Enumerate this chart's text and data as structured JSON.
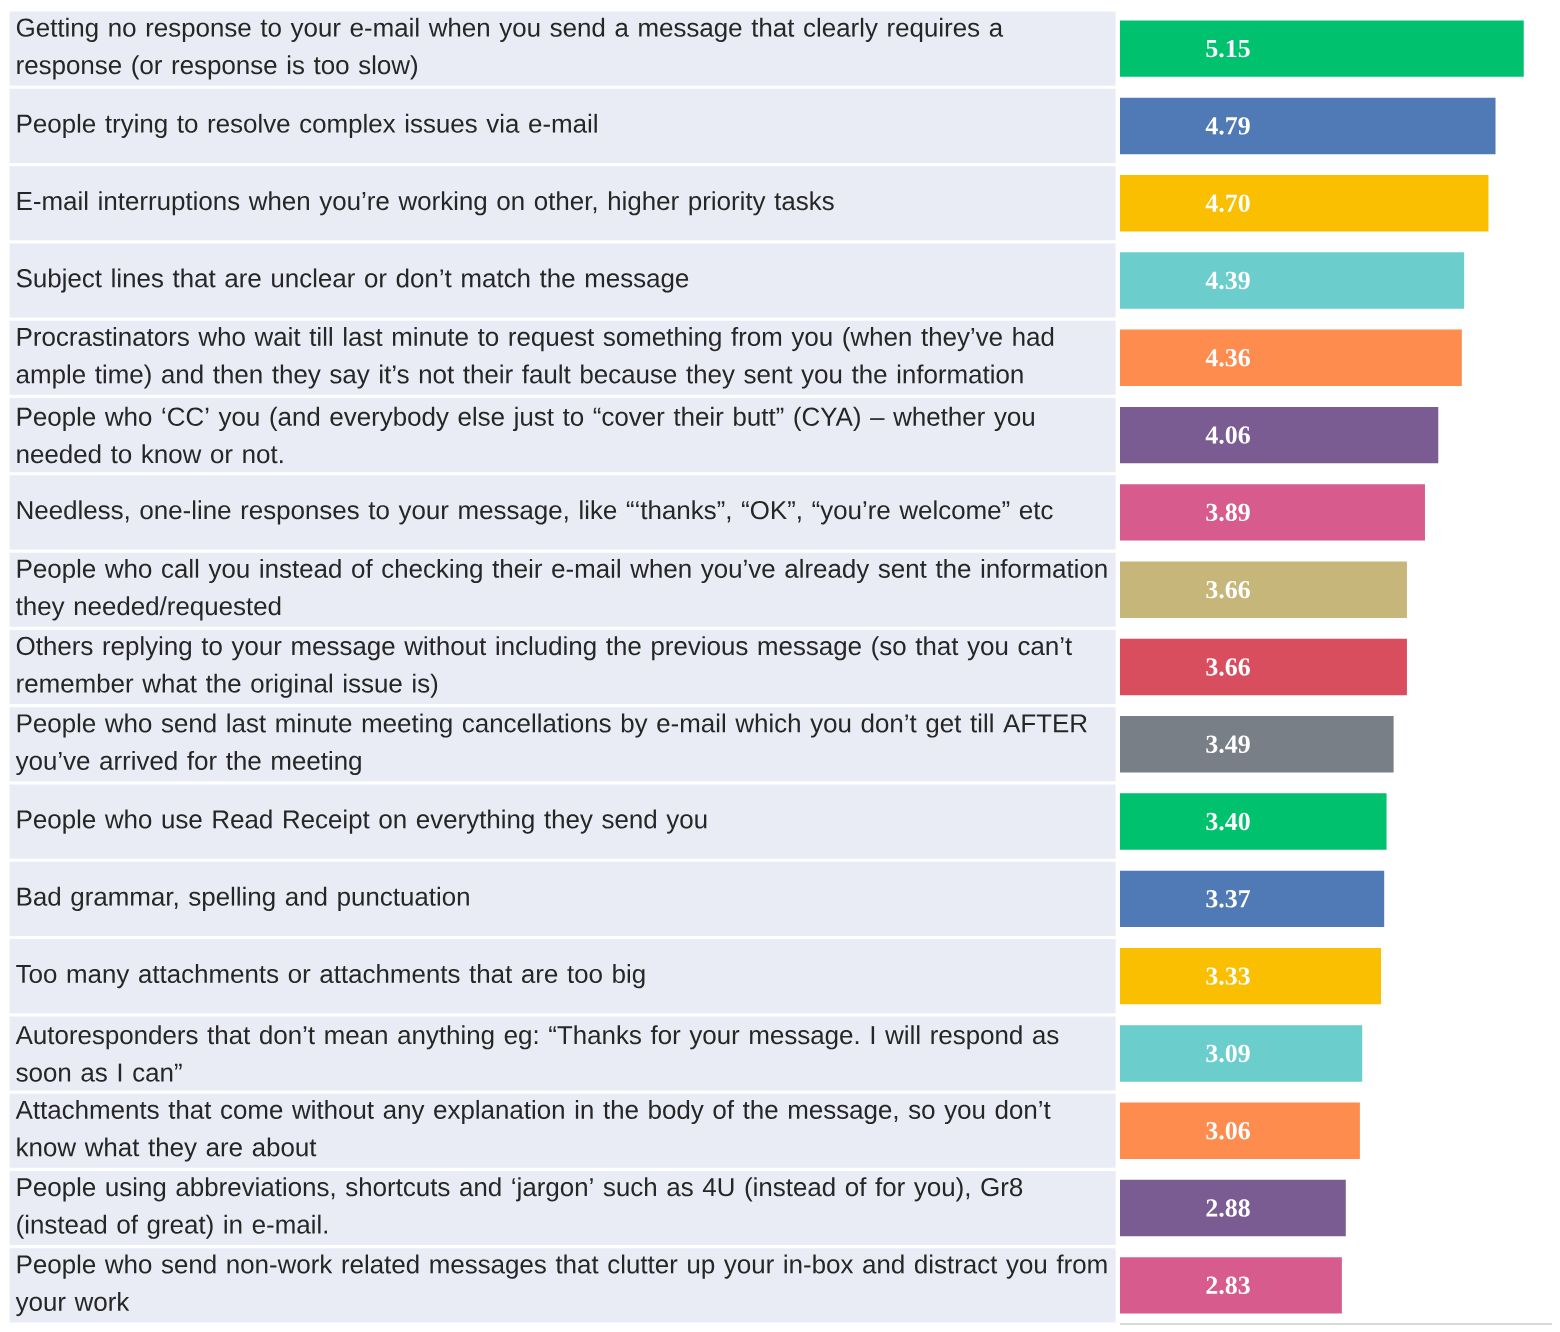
{
  "chart_data": {
    "type": "bar",
    "orientation": "horizontal",
    "categories": [
      "Getting no response to your e-mail when you send a message that clearly requires a response (or response is too slow)",
      "People trying to resolve complex issues via e-mail",
      "E-mail interruptions when you’re working on other, higher priority tasks",
      "Subject lines that are unclear or don’t match the message",
      "Procrastinators who wait till last minute to request something from you (when they’ve had ample time) and then they say it’s not their fault because they sent you the information",
      "People who ‘CC’ you (and everybody else just to “cover their butt” (CYA) – whether you needed to know or not.",
      "Needless, one-line responses to your message, like “‘thanks”, “OK”, “you’re welcome” etc",
      "People who call you instead of checking their e-mail when you’ve already sent the information they needed/requested",
      "Others replying to your message without including the previous message (so that you can’t remember what the original issue is)",
      "People who send last minute meeting cancellations by e-mail which you don’t get till AFTER you’ve arrived for the meeting",
      "People who use Read Receipt on everything they send you",
      "Bad grammar, spelling and punctuation",
      "Too many attachments or attachments that are too big",
      "Autoresponders that don’t mean anything eg: “Thanks for your message. I will respond as soon as I can”",
      "Attachments that come without any explanation in the body of the message, so you don’t know what they are about",
      "People using abbreviations, shortcuts and ‘jargon’ such as 4U (instead of for you), Gr8 (instead of great) in e-mail.",
      "People who send non-work related messages that clutter up your in-box and distract you from your work"
    ],
    "values": [
      5.15,
      4.79,
      4.7,
      4.39,
      4.36,
      4.06,
      3.89,
      3.66,
      3.66,
      3.49,
      3.4,
      3.37,
      3.33,
      3.09,
      3.06,
      2.88,
      2.83
    ],
    "value_labels": [
      "5.15",
      "4.79",
      "4.70",
      "4.39",
      "4.36",
      "4.06",
      "3.89",
      "3.66",
      "3.66",
      "3.49",
      "3.40",
      "3.37",
      "3.33",
      "3.09",
      "3.06",
      "2.88",
      "2.83"
    ],
    "colors": [
      "#00c16e",
      "#4f7ab6",
      "#f9bf00",
      "#6ccdcd",
      "#fd8c4e",
      "#7a5c92",
      "#d85b8d",
      "#c7b679",
      "#d94e5f",
      "#797f87",
      "#00c16e",
      "#4f7ab6",
      "#f9bf00",
      "#6ccdcd",
      "#fd8c4e",
      "#7a5c92",
      "#d85b8d"
    ],
    "tick_labels": "y"
  }
}
